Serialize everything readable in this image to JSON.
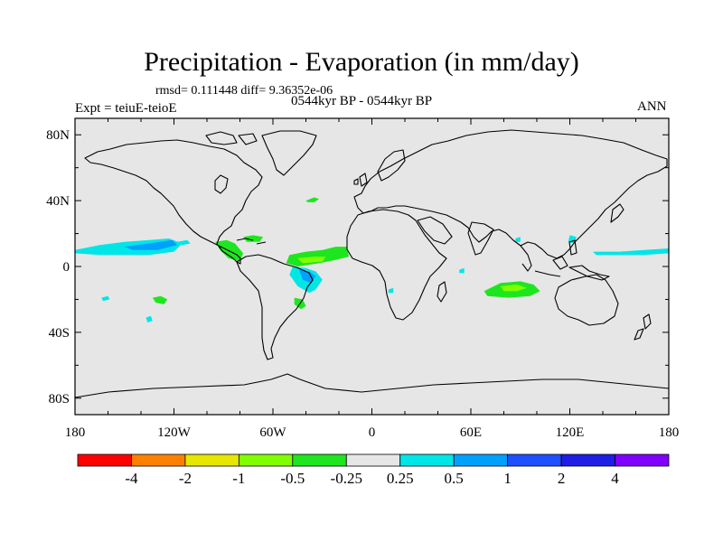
{
  "chart_data": {
    "type": "heatmap",
    "title": "Precipitation - Evaporation (in mm/day)",
    "stats": "rmsd= 0.111448 diff= 9.36352e-06",
    "subtitle": "0544kyr BP - 0544kyr BP",
    "left_label": "Expt = teiuE-teioE",
    "right_label": "ANN",
    "x_range": [
      -180,
      180
    ],
    "y_range": [
      -90,
      90
    ],
    "x_ticks": [
      {
        "value": -180,
        "label": "180"
      },
      {
        "value": -120,
        "label": "120W"
      },
      {
        "value": -60,
        "label": "60W"
      },
      {
        "value": 0,
        "label": "0"
      },
      {
        "value": 60,
        "label": "60E"
      },
      {
        "value": 120,
        "label": "120E"
      },
      {
        "value": 180,
        "label": "180"
      }
    ],
    "y_ticks": [
      {
        "value": 80,
        "label": "80N"
      },
      {
        "value": 40,
        "label": "40N"
      },
      {
        "value": 0,
        "label": "0"
      },
      {
        "value": -40,
        "label": "40S"
      },
      {
        "value": -80,
        "label": "80S"
      }
    ],
    "colorbar": {
      "colors": [
        "#ff0000",
        "#ff8000",
        "#e6e600",
        "#80ff00",
        "#1ee61e",
        "#e6e6e6",
        "#00e6e6",
        "#00a0ff",
        "#1e50ff",
        "#1e1ee6",
        "#8000ff"
      ],
      "labels": [
        "-4",
        "-2",
        "-1",
        "-0.5",
        "-0.25",
        "0.25",
        "0.5",
        "1",
        "2",
        "4"
      ]
    },
    "anomaly_regions": [
      {
        "name": "trop-pacific-main",
        "color": "#00e6e6",
        "points": [
          [
            -180,
            10
          ],
          [
            -165,
            13
          ],
          [
            -150,
            15
          ],
          [
            -135,
            16
          ],
          [
            -123,
            17
          ],
          [
            -115,
            14
          ],
          [
            -120,
            9
          ],
          [
            -135,
            7
          ],
          [
            -150,
            7
          ],
          [
            -165,
            7
          ],
          [
            -180,
            8
          ]
        ]
      },
      {
        "name": "trop-pacific-core",
        "color": "#00a0ff",
        "points": [
          [
            -150,
            12
          ],
          [
            -135,
            14
          ],
          [
            -121,
            16
          ],
          [
            -118,
            13
          ],
          [
            -130,
            10
          ],
          [
            -145,
            10
          ]
        ]
      },
      {
        "name": "central-america",
        "color": "#1ee61e",
        "points": [
          [
            -95,
            15
          ],
          [
            -88,
            16
          ],
          [
            -83,
            14
          ],
          [
            -78,
            8
          ],
          [
            -80,
            3
          ],
          [
            -87,
            5
          ],
          [
            -92,
            10
          ]
        ]
      },
      {
        "name": "caribbean",
        "color": "#1ee61e",
        "points": [
          [
            -78,
            18
          ],
          [
            -72,
            19
          ],
          [
            -66,
            18
          ],
          [
            -68,
            15
          ],
          [
            -76,
            15
          ]
        ]
      },
      {
        "name": "trop-atlantic-green",
        "color": "#1ee61e",
        "points": [
          [
            -50,
            7
          ],
          [
            -40,
            9
          ],
          [
            -30,
            10
          ],
          [
            -22,
            12
          ],
          [
            -15,
            12
          ],
          [
            -14,
            6
          ],
          [
            -22,
            4
          ],
          [
            -32,
            2
          ],
          [
            -45,
            0
          ],
          [
            -52,
            2
          ]
        ]
      },
      {
        "name": "trop-atlantic-light",
        "color": "#80ff00",
        "points": [
          [
            -45,
            5
          ],
          [
            -35,
            6
          ],
          [
            -28,
            6
          ],
          [
            -30,
            3
          ],
          [
            -42,
            2
          ]
        ]
      },
      {
        "name": "amazon-cyan",
        "color": "#00e6e6",
        "points": [
          [
            -48,
            0
          ],
          [
            -40,
            -1
          ],
          [
            -34,
            -3
          ],
          [
            -30,
            -8
          ],
          [
            -34,
            -14
          ],
          [
            -38,
            -16
          ],
          [
            -45,
            -12
          ],
          [
            -50,
            -5
          ]
        ]
      },
      {
        "name": "amazon-blue",
        "color": "#00a0ff",
        "points": [
          [
            -44,
            -2
          ],
          [
            -38,
            -3
          ],
          [
            -34,
            -6
          ],
          [
            -37,
            -10
          ],
          [
            -42,
            -8
          ]
        ]
      },
      {
        "name": "s-atlantic-green",
        "color": "#1ee61e",
        "points": [
          [
            -47,
            -19
          ],
          [
            -42,
            -20
          ],
          [
            -40,
            -24
          ],
          [
            -43,
            -26
          ],
          [
            -47,
            -23
          ]
        ]
      },
      {
        "name": "mid-atlantic-n",
        "color": "#1ee61e",
        "points": [
          [
            -40,
            40
          ],
          [
            -35,
            42
          ],
          [
            -32,
            41
          ],
          [
            -35,
            39
          ],
          [
            -39,
            39
          ]
        ]
      },
      {
        "name": "s-pacific-green",
        "color": "#1ee61e",
        "points": [
          [
            -133,
            -19
          ],
          [
            -128,
            -18
          ],
          [
            -124,
            -20
          ],
          [
            -126,
            -23
          ],
          [
            -131,
            -22
          ]
        ]
      },
      {
        "name": "s-pacific-cyan-w",
        "color": "#00e6e6",
        "points": [
          [
            -164,
            -19
          ],
          [
            -160,
            -18
          ],
          [
            -159,
            -20
          ],
          [
            -163,
            -21
          ]
        ]
      },
      {
        "name": "s-pacific-cyan-s",
        "color": "#00e6e6",
        "points": [
          [
            -137,
            -31
          ],
          [
            -134,
            -30
          ],
          [
            -133,
            -33
          ],
          [
            -136,
            -34
          ]
        ]
      },
      {
        "name": "indian-ocean-green",
        "color": "#1ee61e",
        "points": [
          [
            68,
            -15
          ],
          [
            78,
            -10
          ],
          [
            90,
            -9
          ],
          [
            98,
            -11
          ],
          [
            102,
            -15
          ],
          [
            96,
            -18
          ],
          [
            83,
            -19
          ],
          [
            70,
            -18
          ]
        ]
      },
      {
        "name": "indian-ocean-light",
        "color": "#80ff00",
        "points": [
          [
            78,
            -12
          ],
          [
            88,
            -11
          ],
          [
            94,
            -13
          ],
          [
            88,
            -15
          ],
          [
            80,
            -15
          ]
        ]
      },
      {
        "name": "w-pacific-cyan",
        "color": "#00e6e6",
        "points": [
          [
            134,
            9
          ],
          [
            150,
            9
          ],
          [
            165,
            10
          ],
          [
            180,
            11
          ],
          [
            180,
            8
          ],
          [
            165,
            7
          ],
          [
            150,
            7
          ],
          [
            136,
            7
          ]
        ]
      },
      {
        "name": "philippines-cyan",
        "color": "#00e6e6",
        "points": [
          [
            120,
            19
          ],
          [
            124,
            18
          ],
          [
            123,
            14
          ],
          [
            119,
            15
          ]
        ]
      },
      {
        "name": "arabian-sea-cyan",
        "color": "#00e6e6",
        "points": [
          [
            87,
            17
          ],
          [
            90,
            18
          ],
          [
            90,
            15
          ],
          [
            87,
            15
          ]
        ]
      },
      {
        "name": "e-africa-cyan",
        "color": "#00e6e6",
        "points": [
          [
            53,
            -2
          ],
          [
            56,
            -1
          ],
          [
            56,
            -4
          ],
          [
            53,
            -4
          ]
        ]
      },
      {
        "name": "mauritius-cyan",
        "color": "#00e6e6",
        "points": [
          [
            10,
            -14
          ],
          [
            13,
            -13
          ],
          [
            13,
            -16
          ],
          [
            10,
            -16
          ]
        ]
      },
      {
        "name": "e-pacific-cyan",
        "color": "#00e6e6",
        "points": [
          [
            -118,
            15
          ],
          [
            -112,
            16
          ],
          [
            -110,
            14
          ],
          [
            -115,
            13
          ]
        ]
      }
    ]
  }
}
